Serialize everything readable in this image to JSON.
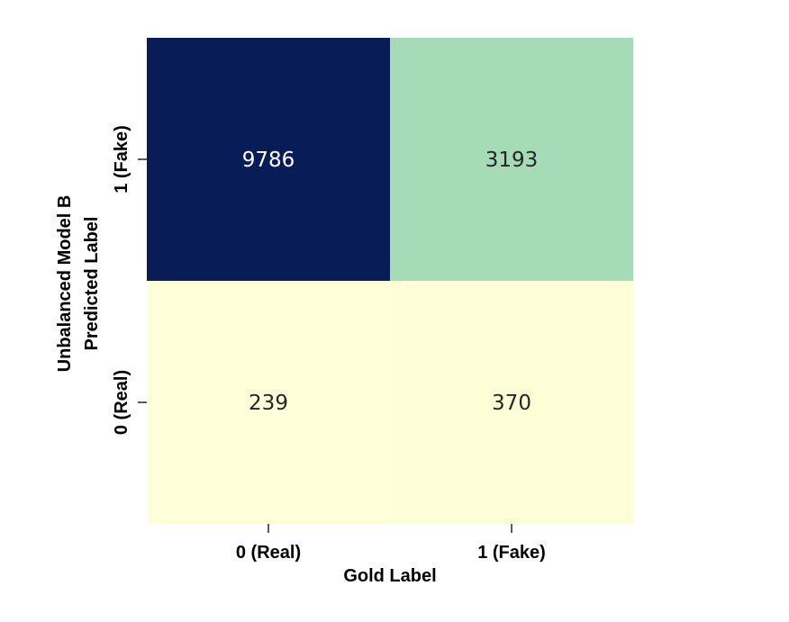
{
  "chart_data": {
    "type": "heatmap",
    "xlabel": "Gold Label",
    "ylabel_lines": [
      "Unbalanced Model B",
      "Predicted Label"
    ],
    "x_categories": [
      "0 (Real)",
      "1 (Fake)"
    ],
    "y_categories": [
      "1 (Fake)",
      "0 (Real)"
    ],
    "values": [
      [
        9786,
        3193
      ],
      [
        239,
        370
      ]
    ],
    "colormap": "YlGnBu",
    "colors": {
      "low": "#ffffd9",
      "mid": "#a5dbb8",
      "high": "#081d58",
      "text_dark": "#262626",
      "text_light": "#ffffff"
    }
  }
}
